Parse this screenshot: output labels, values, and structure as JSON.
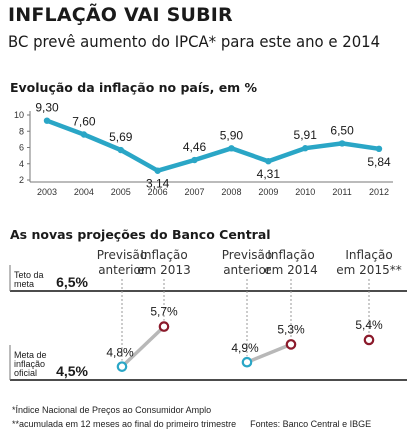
{
  "header": {
    "title": "INFLAÇÃO VAI SUBIR",
    "subtitle": "BC prevê aumento do IPCA* para este ano e 2014"
  },
  "chart_data": [
    {
      "type": "line",
      "title": "Evolução da inflação no país, em %",
      "x": [
        "2003",
        "2004",
        "2005",
        "2006",
        "2007",
        "2008",
        "2009",
        "2010",
        "2011",
        "2012"
      ],
      "y": [
        9.3,
        7.6,
        5.69,
        3.14,
        4.46,
        5.9,
        4.31,
        5.91,
        6.5,
        5.84
      ],
      "data_labels": [
        "9,30",
        "7,60",
        "5,69",
        "3,14",
        "4,46",
        "5,90",
        "4,31",
        "5,91",
        "6,50",
        "5,84"
      ],
      "y_ticks": [
        "10",
        "8",
        "6",
        "4",
        "2"
      ],
      "ylim": [
        2,
        10
      ],
      "grid": false,
      "color": "#2aa6c6"
    },
    {
      "type": "scatter",
      "title": "As novas projeções do Banco Central",
      "reference_lines": [
        {
          "label": "Teto da meta",
          "value": 6.5,
          "value_label": "6,5%"
        },
        {
          "label": "Meta de inflação oficial",
          "value": 4.5,
          "value_label": "4,5%"
        }
      ],
      "groups": [
        {
          "previous_label": "Previsão anterior",
          "current_label": "Inflação em 2013",
          "previous": 4.8,
          "previous_text": "4,8%",
          "current": 5.7,
          "current_text": "5,7%"
        },
        {
          "previous_label": "Previsão anterior",
          "current_label": "Inflação em 2014",
          "previous": 4.9,
          "previous_text": "4,9%",
          "current": 5.3,
          "current_text": "5,3%"
        },
        {
          "current_label": "Inflação em 2015**",
          "current": 5.4,
          "current_text": "5,4%"
        }
      ],
      "colors": {
        "previous": "#2aa6c6",
        "current": "#8b1a2b",
        "connector": "#b8b8b8"
      }
    }
  ],
  "footnotes": {
    "note1": "*Índice Nacional de Preços ao Consumidor Amplo",
    "note2": "**acumulada em 12 meses ao final do primeiro trimestre",
    "sources": "Fontes: Banco Central e IBGE"
  }
}
